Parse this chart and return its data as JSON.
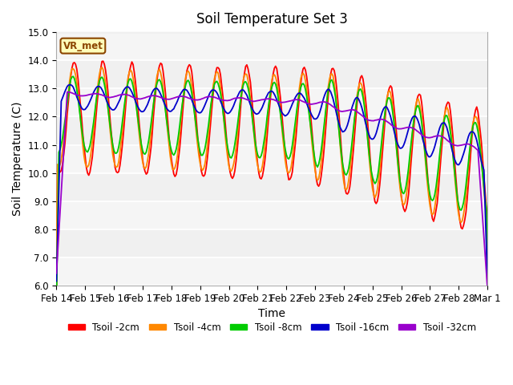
{
  "title": "Soil Temperature Set 3",
  "xlabel": "Time",
  "ylabel": "Soil Temperature (C)",
  "ylim": [
    6.0,
    15.0
  ],
  "yticks": [
    6.0,
    7.0,
    8.0,
    9.0,
    10.0,
    11.0,
    12.0,
    13.0,
    14.0,
    15.0
  ],
  "date_labels": [
    "Feb 14",
    "Feb 15",
    "Feb 16",
    "Feb 17",
    "Feb 18",
    "Feb 19",
    "Feb 20",
    "Feb 21",
    "Feb 22",
    "Feb 23",
    "Feb 24",
    "Feb 25",
    "Feb 26",
    "Feb 27",
    "Feb 28",
    "Mar 1"
  ],
  "annotation": "VR_met",
  "colors": {
    "Tsoil -2cm": "#ff0000",
    "Tsoil -4cm": "#ff8800",
    "Tsoil -8cm": "#00cc00",
    "Tsoil -16cm": "#0000cc",
    "Tsoil -32cm": "#9900cc"
  },
  "legend_labels": [
    "Tsoil -2cm",
    "Tsoil -4cm",
    "Tsoil -8cm",
    "Tsoil -16cm",
    "Tsoil -32cm"
  ],
  "bg_color": "#ffffff",
  "plot_bg_light": "#f0f0f0",
  "plot_bg_dark": "#e0e0e0",
  "title_fontsize": 12,
  "axis_fontsize": 10,
  "tick_fontsize": 8.5
}
